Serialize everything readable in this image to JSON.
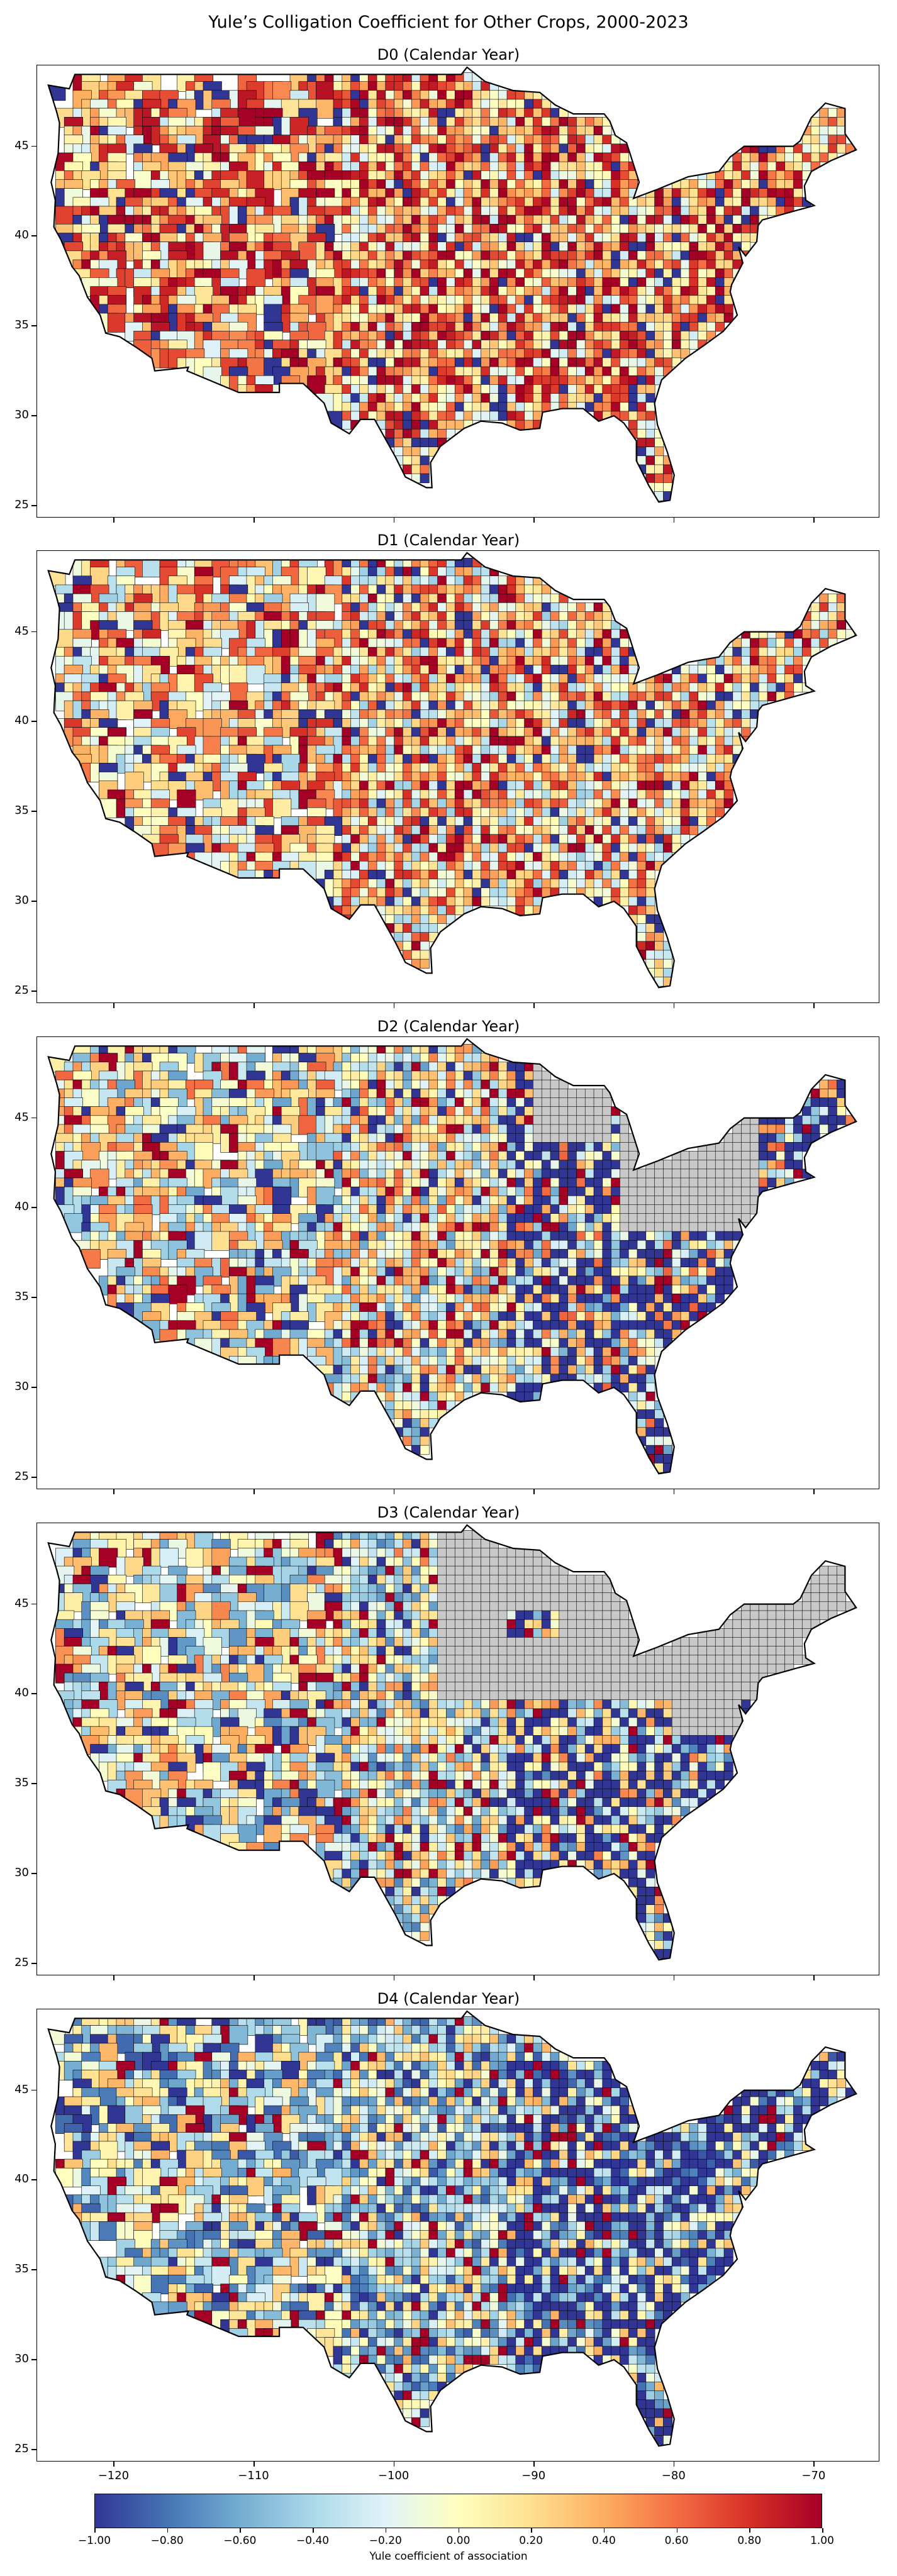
{
  "figure": {
    "title": "Yule’s Colligation Coefficient for Other Crops, 2000-2023"
  },
  "panels": [
    {
      "title": "D0 (Calendar Year)",
      "palette_bias": 0.35,
      "gray_region": "none"
    },
    {
      "title": "D1 (Calendar Year)",
      "palette_bias": 0.2,
      "gray_region": "none"
    },
    {
      "title": "D2 (Calendar Year)",
      "palette_bias": 0.0,
      "gray_region": "northeast"
    },
    {
      "title": "D3 (Calendar Year)",
      "palette_bias": -0.1,
      "gray_region": "midwest-northeast"
    },
    {
      "title": "D4 (Calendar Year)",
      "palette_bias": -0.25,
      "gray_region": "none"
    }
  ],
  "axes": {
    "y_ticks": [
      "45",
      "40",
      "35",
      "30",
      "25"
    ],
    "x_ticks": [
      "−120",
      "−110",
      "−100",
      "−90",
      "−80",
      "−70"
    ]
  },
  "colorbar": {
    "title": "Yule coefficient of association",
    "ticks": [
      "−1.00",
      "−0.80",
      "−0.60",
      "−0.40",
      "−0.20",
      "0.00",
      "0.20",
      "0.40",
      "0.60",
      "0.80",
      "1.00"
    ],
    "colormap": [
      "#313695",
      "#4575b4",
      "#74add1",
      "#abd9e9",
      "#e0f3f8",
      "#ffffbf",
      "#fee090",
      "#fdae61",
      "#f46d43",
      "#d73027",
      "#a50026"
    ],
    "missing_color": "#c8c8c8"
  }
}
